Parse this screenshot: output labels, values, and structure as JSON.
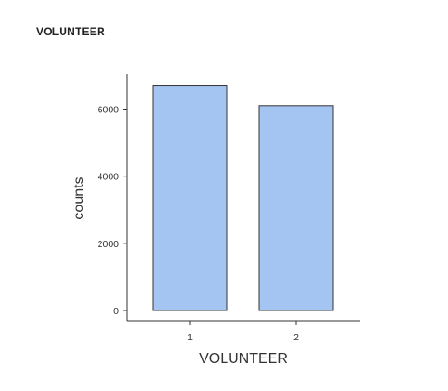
{
  "header": {
    "title": "VOLUNTEER"
  },
  "chart_data": {
    "type": "bar",
    "title": "",
    "categories": [
      "1",
      "2"
    ],
    "values": [
      6700,
      6100
    ],
    "xlabel": "VOLUNTEER",
    "ylabel": "counts",
    "ylim": [
      0,
      7000
    ],
    "yticks": [
      0,
      2000,
      4000,
      6000
    ],
    "grid": false,
    "legend": "none",
    "colors": {
      "bar_fill": "#a4c4f2",
      "bar_stroke": "#333333",
      "axis": "#333333"
    }
  }
}
